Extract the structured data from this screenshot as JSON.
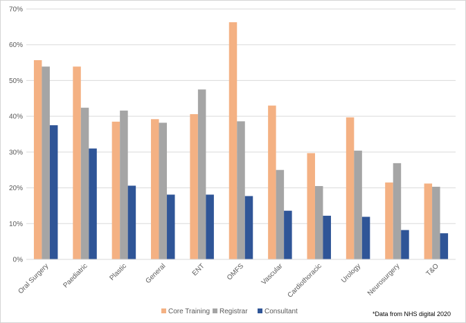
{
  "chart_data": {
    "type": "bar",
    "categories": [
      "Oral Surgery",
      "Paediatric",
      "Plastic",
      "General",
      "ENT",
      "OMFS",
      "Vascular",
      "Cardiothoracic",
      "Urology",
      "Neurosurgery",
      "T&O"
    ],
    "series": [
      {
        "name": "Core Training",
        "color": "#f4b183",
        "values": [
          55.7,
          53.9,
          38.5,
          39.2,
          40.6,
          66.3,
          43.0,
          29.7,
          39.7,
          21.5,
          21.2
        ]
      },
      {
        "name": "Registrar",
        "color": "#a5a5a5",
        "values": [
          53.9,
          42.4,
          41.6,
          38.2,
          47.5,
          38.6,
          25.0,
          20.5,
          30.4,
          26.9,
          20.3
        ]
      },
      {
        "name": "Consultant",
        "color": "#2f5597",
        "values": [
          37.5,
          31.0,
          20.6,
          18.1,
          18.1,
          17.7,
          13.6,
          12.2,
          11.9,
          8.2,
          7.3
        ]
      }
    ],
    "y_ticks": [
      "0%",
      "10%",
      "20%",
      "30%",
      "40%",
      "50%",
      "60%",
      "70%"
    ],
    "ylim": [
      0,
      70
    ],
    "grid": true,
    "legend_position": "bottom-center",
    "footnote": "*Data from NHS digital 2020"
  }
}
